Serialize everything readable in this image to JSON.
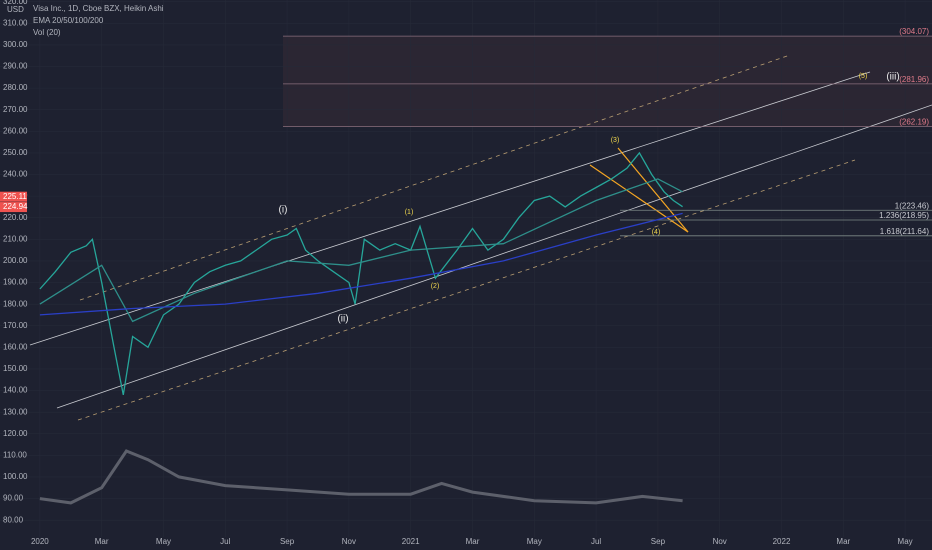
{
  "chart_data": {
    "type": "line",
    "currency": "USD",
    "title": "Visa Inc., 1D, Cboe BZX, Heikin Ashi",
    "indicators": [
      "EMA 20/50/100/200",
      "Vol (20)"
    ],
    "xlim": [
      -1.29,
      28.87
    ],
    "ylim": [
      72.2,
      320.8
    ],
    "xticks": [
      {
        "value": 0,
        "label": "2020"
      },
      {
        "value": 2,
        "label": "Mar"
      },
      {
        "value": 4,
        "label": "May"
      },
      {
        "value": 6,
        "label": "Jul"
      },
      {
        "value": 8,
        "label": "Sep"
      },
      {
        "value": 10,
        "label": "Nov"
      },
      {
        "value": 12,
        "label": "2021"
      },
      {
        "value": 14,
        "label": "Mar"
      },
      {
        "value": 16,
        "label": "May"
      },
      {
        "value": 18,
        "label": "Jul"
      },
      {
        "value": 20,
        "label": "Sep"
      },
      {
        "value": 22,
        "label": "Nov"
      },
      {
        "value": 24,
        "label": "2022"
      },
      {
        "value": 26,
        "label": "Mar"
      },
      {
        "value": 28,
        "label": "May"
      }
    ],
    "yticks": [
      {
        "value": 80,
        "label": "80.00"
      },
      {
        "value": 90,
        "label": "90.00"
      },
      {
        "value": 100,
        "label": "100.00"
      },
      {
        "value": 110,
        "label": "110.00"
      },
      {
        "value": 120,
        "label": "120.00"
      },
      {
        "value": 130,
        "label": "130.00"
      },
      {
        "value": 140,
        "label": "140.00"
      },
      {
        "value": 150,
        "label": "150.00"
      },
      {
        "value": 160,
        "label": "160.00"
      },
      {
        "value": 170,
        "label": "170.00"
      },
      {
        "value": 180,
        "label": "180.00"
      },
      {
        "value": 190,
        "label": "190.00"
      },
      {
        "value": 200,
        "label": "200.00"
      },
      {
        "value": 210,
        "label": "210.00"
      },
      {
        "value": 220,
        "label": "220.00"
      },
      {
        "value": 230,
        "label": "230.00"
      },
      {
        "value": 240,
        "label": "240.00"
      },
      {
        "value": 250,
        "label": "250.00"
      },
      {
        "value": 260,
        "label": "260.00"
      },
      {
        "value": 270,
        "label": "270.00"
      },
      {
        "value": 280,
        "label": "280.00"
      },
      {
        "value": 290,
        "label": "290.00"
      },
      {
        "value": 300,
        "label": "300.00"
      },
      {
        "value": 310,
        "label": "310.00"
      },
      {
        "value": 320,
        "label": "320.00"
      }
    ],
    "series": [
      {
        "color": "#26a69a",
        "x": [
          0,
          0.5,
          1,
          1.5,
          1.7,
          2,
          2.4,
          2.7,
          3,
          3.5,
          4,
          4.5,
          5,
          5.5,
          6,
          6.5,
          7,
          7.5,
          8,
          8.3,
          8.6,
          9,
          9.5,
          10,
          10.2,
          10.5,
          11,
          11.5,
          12,
          12.3,
          12.8,
          13.5,
          14,
          14.5,
          15,
          15.5,
          16,
          16.5,
          17,
          17.5,
          18,
          18.5,
          19,
          19.4,
          19.8,
          20.2,
          20.5,
          20.8
        ],
        "values": [
          187,
          195,
          204,
          207,
          210,
          190,
          160,
          138,
          165,
          160,
          175,
          180,
          190,
          195,
          198,
          200,
          205,
          210,
          212,
          215,
          205,
          200,
          195,
          190,
          180,
          210,
          205,
          208,
          205,
          216,
          192,
          205,
          215,
          205,
          210,
          220,
          228,
          230,
          225,
          230,
          234,
          238,
          243,
          250,
          240,
          232,
          228,
          225.11
        ]
      },
      {
        "color": "#2e8f8a",
        "x": [
          0,
          2,
          3,
          5,
          8,
          10,
          12,
          15,
          18,
          20,
          20.8
        ],
        "values": [
          180,
          198,
          172,
          185,
          200,
          198,
          205,
          208,
          228,
          238,
          232
        ]
      },
      {
        "color": "#2a3fc7",
        "x": [
          0,
          3,
          6,
          9,
          12,
          15,
          18,
          20.8
        ],
        "values": [
          175,
          178,
          180,
          185,
          192,
          200,
          212,
          222
        ]
      },
      {
        "color": "#5d606b",
        "x": [
          0,
          1,
          2,
          2.8,
          3.5,
          4.5,
          6,
          8,
          10,
          12,
          13,
          14,
          16,
          18,
          19.5,
          20.8
        ],
        "values": [
          90,
          88,
          95,
          112,
          108,
          100,
          96,
          94,
          92,
          92,
          97,
          93,
          89,
          88,
          91,
          89
        ]
      }
    ],
    "price_tags": [
      {
        "value": 225.11,
        "label": "225.11"
      },
      {
        "value": 224.94,
        "label": "224.94"
      }
    ],
    "fib_levels": [
      {
        "value": 304.07,
        "label": "(304.07)"
      },
      {
        "value": 281.96,
        "label": "(281.96)"
      },
      {
        "value": 262.19,
        "label": "(262.19)"
      },
      {
        "value": 223.46,
        "label": "1(223.46)"
      },
      {
        "value": 218.95,
        "label": "1.236(218.95)"
      },
      {
        "value": 211.64,
        "label": "1.618(211.64)"
      }
    ],
    "wave_labels": [
      "(i)",
      "(ii)",
      "(iii)",
      "(1)",
      "(2)",
      "(3)",
      "(4)",
      "(5)"
    ]
  }
}
